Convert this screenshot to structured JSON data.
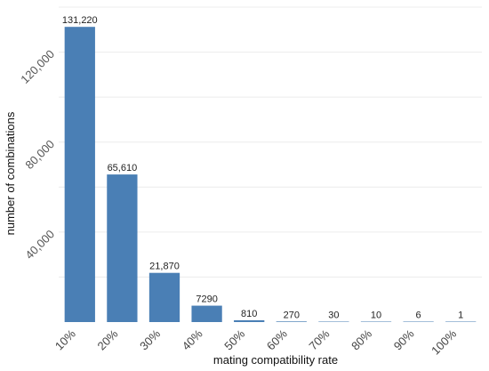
{
  "chart_data": {
    "type": "bar",
    "title": "",
    "xlabel": "mating compatibility rate",
    "ylabel": "number of combinations",
    "categories": [
      "10%",
      "20%",
      "30%",
      "40%",
      "50%",
      "60%",
      "70%",
      "80%",
      "90%",
      "100%"
    ],
    "values": [
      131220,
      65610,
      21870,
      7290,
      810,
      270,
      30,
      10,
      6,
      1
    ],
    "value_labels": [
      "131,220",
      "65,610",
      "21,870",
      "7290",
      "810",
      "270",
      "30",
      "10",
      "6",
      "1"
    ],
    "ylim": [
      0,
      140000
    ],
    "y_ticks": [
      40000,
      80000,
      120000
    ],
    "y_tick_labels": [
      "40,000",
      "80,000",
      "120,000"
    ],
    "grid": true,
    "bar_color": "#4a7fb5",
    "legend": "none"
  }
}
